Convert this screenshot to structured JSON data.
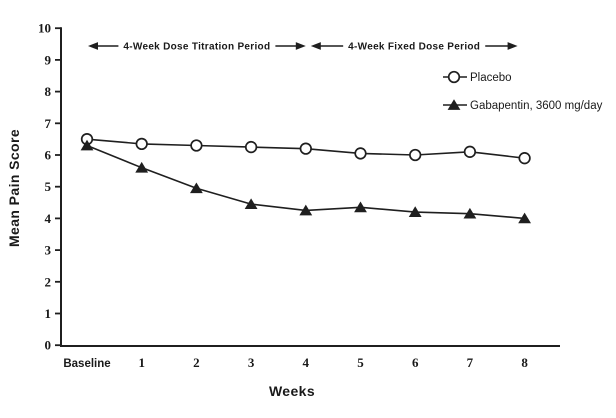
{
  "colors": {
    "foreground": "#1f1f1f",
    "background": "#ffffff",
    "marker_fill_open": "#ffffff"
  },
  "chart_data": {
    "type": "line",
    "title": "",
    "xlabel": "Weeks",
    "ylabel": "Mean Pain Score",
    "x_categories": [
      "Baseline",
      "1",
      "2",
      "3",
      "4",
      "5",
      "6",
      "7",
      "8"
    ],
    "ylim": [
      0,
      10
    ],
    "ytick_step": 1,
    "grid": false,
    "legend_position": "upper-right",
    "series": [
      {
        "name": "Placebo",
        "marker": "open-circle",
        "color": "#1f1f1f",
        "values": [
          6.5,
          6.35,
          6.3,
          6.25,
          6.2,
          6.05,
          6.0,
          6.1,
          5.9
        ]
      },
      {
        "name": "Gabapentin, 3600 mg/day",
        "marker": "filled-triangle",
        "color": "#1f1f1f",
        "values": [
          6.3,
          5.6,
          4.95,
          4.45,
          4.25,
          4.35,
          4.2,
          4.15,
          4.0
        ]
      }
    ],
    "annotations": [
      {
        "label": "4-Week Dose Titration Period",
        "x_from": 0,
        "x_to": 4
      },
      {
        "label": "4-Week Fixed Dose Period",
        "x_from": 4,
        "x_to": 8
      }
    ]
  }
}
